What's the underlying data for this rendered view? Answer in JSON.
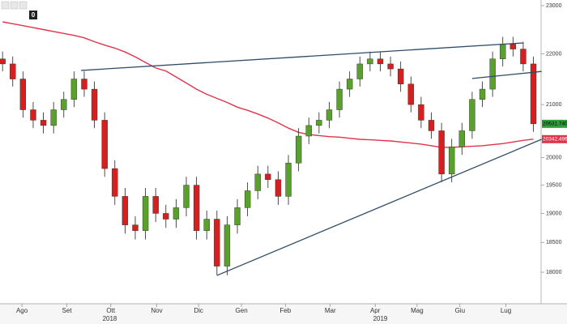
{
  "toolbar_badge": "0",
  "chart_data": {
    "type": "candlestick",
    "log_scale": true,
    "up_color": "#5aa02c",
    "down_color": "#d42020",
    "open": [
      21900,
      21800,
      21500,
      20900,
      20700,
      20600,
      20900,
      21100,
      21500,
      21300,
      20700,
      19800,
      19300,
      18800,
      18700,
      19300,
      19000,
      18900,
      19100,
      19500,
      18700,
      18900,
      18100,
      18800,
      19100,
      19400,
      19700,
      19600,
      19300,
      19900,
      20400,
      20600,
      20700,
      20900,
      21300,
      21500,
      21800,
      21900,
      21800,
      21700,
      21400,
      21000,
      20700,
      20500,
      19700,
      20200,
      20500,
      21100,
      21300,
      21900,
      22200,
      22100,
      21800
    ],
    "high": [
      22050,
      21950,
      21650,
      21050,
      20850,
      21050,
      21250,
      21650,
      21650,
      21450,
      20850,
      19950,
      19450,
      18950,
      19450,
      19450,
      19150,
      19250,
      19650,
      19650,
      19050,
      19050,
      18950,
      19250,
      19550,
      19850,
      19850,
      19750,
      20050,
      20550,
      20750,
      20850,
      21050,
      21450,
      21650,
      21950,
      22050,
      22050,
      21950,
      21850,
      21550,
      21150,
      20850,
      20650,
      20350,
      20650,
      21250,
      21450,
      22050,
      22350,
      22350,
      22250,
      21950
    ],
    "low": [
      21650,
      21350,
      20750,
      20550,
      20450,
      20450,
      20750,
      20950,
      21150,
      20550,
      19650,
      19150,
      18650,
      18550,
      18550,
      18850,
      18750,
      18750,
      18950,
      18550,
      18550,
      17950,
      17950,
      18650,
      18950,
      19250,
      19450,
      19150,
      19150,
      19750,
      20250,
      20450,
      20550,
      20750,
      21150,
      21350,
      21650,
      21650,
      21550,
      21250,
      20850,
      20550,
      20350,
      19550,
      19550,
      20050,
      20350,
      20950,
      21150,
      21750,
      21950,
      21650,
      20480
    ],
    "close": [
      21800,
      21500,
      20900,
      20700,
      20600,
      20900,
      21100,
      21500,
      21300,
      20700,
      19800,
      19300,
      18800,
      18700,
      19300,
      19000,
      18900,
      19100,
      19500,
      18700,
      18900,
      18100,
      18800,
      19100,
      19400,
      19700,
      19600,
      19300,
      19900,
      20400,
      20600,
      20700,
      20900,
      21300,
      21500,
      21800,
      21900,
      21800,
      21700,
      21400,
      21000,
      20700,
      20500,
      19700,
      20200,
      20500,
      21100,
      21300,
      21900,
      22200,
      22100,
      21800,
      20631.74
    ],
    "last_label": {
      "value": 20631.7402,
      "label": "20631.7402",
      "color": "#2e9e3a"
    },
    "moving_average": {
      "color": "#e0344a",
      "values": [
        22660,
        22620,
        22580,
        22540,
        22500,
        22460,
        22420,
        22380,
        22330,
        22250,
        22180,
        22120,
        22040,
        21940,
        21830,
        21720,
        21660,
        21540,
        21420,
        21300,
        21200,
        21120,
        21040,
        20950,
        20890,
        20820,
        20740,
        20650,
        20550,
        20470,
        20430,
        20410,
        20390,
        20380,
        20360,
        20340,
        20330,
        20320,
        20310,
        20290,
        20270,
        20250,
        20220,
        20190,
        20190,
        20200,
        20210,
        20220,
        20240,
        20260,
        20290,
        20320,
        20342.4961
      ],
      "last_label": {
        "value": 20342.4961,
        "label": "20342.4961"
      }
    },
    "trend_lines": [
      {
        "color": "#2d4a66",
        "from": [
          7.7,
          21670
        ],
        "to": [
          51,
          22225
        ]
      },
      {
        "color": "#2d4a66",
        "from": [
          46,
          21510
        ],
        "to": [
          52.8,
          21650
        ]
      },
      {
        "color": "#2d4a66",
        "from": [
          21,
          17946
        ],
        "to": [
          52.8,
          20340
        ]
      }
    ],
    "xlim": [
      -0.25,
      52.75
    ],
    "xticks": [
      {
        "value": 1.9,
        "label": "Ago"
      },
      {
        "value": 6.3,
        "label": "Set"
      },
      {
        "value": 10.6,
        "label": "Ott"
      },
      {
        "value": 15.1,
        "label": "Nov"
      },
      {
        "value": 19.2,
        "label": "Dic"
      },
      {
        "value": 23.4,
        "label": "Gen"
      },
      {
        "value": 27.7,
        "label": "Feb"
      },
      {
        "value": 32.1,
        "label": "Mar"
      },
      {
        "value": 36.5,
        "label": "Apr"
      },
      {
        "value": 40.6,
        "label": "Mag"
      },
      {
        "value": 44.8,
        "label": "Giu"
      },
      {
        "value": 49.3,
        "label": "Lug"
      }
    ],
    "year_ticks": [
      {
        "value": 10.5,
        "label": "2018"
      },
      {
        "value": 37,
        "label": "2019"
      }
    ],
    "ylim": [
      17485,
      23120
    ],
    "yticks": [
      18000,
      18500,
      19000,
      19500,
      20000,
      21000,
      22000,
      23000
    ]
  }
}
